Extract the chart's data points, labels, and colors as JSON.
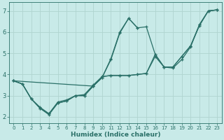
{
  "xlabel": "Humidex (Indice chaleur)",
  "bg_color": "#c8eae8",
  "line_color": "#2a7068",
  "grid_color": "#b0d4d0",
  "xlim": [
    -0.5,
    23.5
  ],
  "ylim": [
    1.7,
    7.4
  ],
  "xticks": [
    0,
    1,
    2,
    3,
    4,
    5,
    6,
    7,
    8,
    9,
    10,
    11,
    12,
    13,
    14,
    15,
    16,
    17,
    18,
    19,
    20,
    21,
    22,
    23
  ],
  "yticks": [
    2,
    3,
    4,
    5,
    6,
    7
  ],
  "lines": [
    {
      "x": [
        0,
        1,
        2,
        3,
        4,
        5,
        6,
        7,
        8,
        9,
        10,
        11,
        12,
        13,
        14,
        15,
        16,
        17,
        18,
        19,
        20,
        21,
        22,
        23
      ],
      "y": [
        3.7,
        3.55,
        2.85,
        2.4,
        2.1,
        2.65,
        2.75,
        3.0,
        3.0,
        3.45,
        3.85,
        4.7,
        5.95,
        6.65,
        6.2,
        6.25,
        4.95,
        4.35,
        4.3,
        4.7,
        5.3,
        6.35,
        7.0,
        7.05
      ]
    },
    {
      "x": [
        0,
        1,
        2,
        3,
        4,
        5,
        6,
        7,
        8,
        9,
        10,
        11,
        12,
        13,
        14
      ],
      "y": [
        3.7,
        3.55,
        2.85,
        2.4,
        2.15,
        2.65,
        2.75,
        3.0,
        3.0,
        3.45,
        3.85,
        4.75,
        6.0,
        6.65,
        6.2
      ]
    },
    {
      "x": [
        0,
        1,
        2,
        3,
        4,
        5,
        6,
        7,
        8,
        9,
        10,
        11,
        12,
        13,
        14,
        15,
        16,
        17,
        18,
        19,
        20,
        21,
        22,
        23
      ],
      "y": [
        3.7,
        3.55,
        2.85,
        2.45,
        2.15,
        2.7,
        2.8,
        3.0,
        3.05,
        3.5,
        3.9,
        3.95,
        3.95,
        3.95,
        4.0,
        4.05,
        4.85,
        4.35,
        4.35,
        4.85,
        5.35,
        6.35,
        7.0,
        7.05
      ]
    },
    {
      "x": [
        0,
        9,
        10,
        11,
        12,
        13,
        14,
        15,
        16,
        17,
        18,
        19,
        20,
        21,
        22,
        23
      ],
      "y": [
        3.7,
        3.45,
        3.9,
        3.95,
        3.95,
        3.95,
        4.0,
        4.05,
        4.95,
        4.35,
        4.35,
        4.85,
        5.35,
        6.3,
        7.0,
        7.05
      ]
    }
  ]
}
